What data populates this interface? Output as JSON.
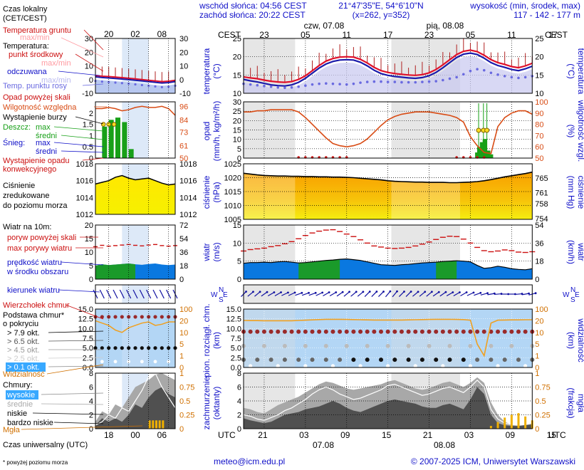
{
  "header": {
    "sunrise": "wschód słońca: 04:56 CEST",
    "sunset": "zachód słońca: 20:22 CEST",
    "coords": "21°47'35\"E, 54°6'10\"N",
    "grid": "(x=262, y=352)",
    "elev_title": "wysokość (min, środek, max)",
    "elev_values": "117 - 142 - 177 m"
  },
  "legend": {
    "local_time": "Czas lokalny",
    "local_time2": "(CET/CEST)",
    "soil_temp": "Temperatura gruntu",
    "maxmin": "max/min",
    "temperatura": "Temperatura:",
    "mid_point": "punkt środkowy",
    "maxmin2": "max/min",
    "feels": "odczuwana",
    "maxmin3": "max/min",
    "dew": "Temp. punktu rosy",
    "precip_above": "Opad powyżej skali",
    "rel_hum": "Wilgotność względna",
    "storm": "Wystąpienie burzy",
    "rain": "Deszcz:",
    "rain_max": "max",
    "rain_mid": "średni",
    "snow": "Śnieg:",
    "snow_max": "max",
    "snow_mid": "średni",
    "precip_occ1": "Wystąpienie opadu",
    "precip_occ2": "konwekcyjnego",
    "pressure1": "Ciśnienie",
    "pressure2": "zredukowane",
    "pressure3": "do poziomu morza",
    "wind10": "Wiatr na 10m:",
    "gust_above": "poryw powyżej skali",
    "gust_max": "max porywy wiatru",
    "wind_speed1": "prędkość wiatru",
    "wind_speed2": "w środku obszaru",
    "wind_dir": "kierunek wiatru",
    "cb_top": "Wierzchołek chmur",
    "cloud_base1": "Podstawa chmur*",
    "cloud_base2": "o pokryciu",
    "okt1": "> 7.9 okt.",
    "okt2": "> 6.5 okt.",
    "okt3": "> 4.5 okt.",
    "okt4": "> 2.5 okt.",
    "okt5": "> 0.1 okt.",
    "visibility": "Widzialność",
    "clouds": "Chmury:",
    "high": "wysokie",
    "mid": "średnie",
    "low": "niskie",
    "very_low": "bardzo niskie",
    "fog": "Mgła",
    "utc_label": "Czas uniwersalny (UTC)",
    "footnote": "* powyżej poziomu morza"
  },
  "axes": {
    "cest": "CEST",
    "utc": "UTC",
    "day1": "czw, 07.08",
    "day2": "pią, 08.08",
    "date1": "07.08",
    "date2": "08.08",
    "temp_label": "temperatura",
    "temp_unit": "(°C)",
    "precip_label": "opad",
    "precip_unit": "(mm/h, kg/m²/h)",
    "hum_label": "wilgotność wzgl.",
    "hum_unit": "(%)",
    "press_label": "ciśnienie",
    "press_unit": "(hPa)",
    "press_unit2": "(mm Hg)",
    "wind_label": "wiatr",
    "wind_unit": "(m/s)",
    "wind_unit2": "(km/h)",
    "cloud_label": "pion. rozciągł. chm.",
    "cloud_unit": "(km)",
    "vis_label": "widzialność",
    "vis_unit": "(km)",
    "cover_label": "zachmurzenie",
    "cover_unit": "(oktanty)",
    "fog_label": "mgła",
    "fog_unit": "(frakcja)",
    "wdir_w": "W",
    "wdir_n": "N",
    "wdir_s": "S",
    "wdir_e": "E"
  },
  "footer": {
    "email": "meteo@icm.edu.pl",
    "copyright": "© 2007-2025 ICM, Uniwersytet Warszawski"
  },
  "colors": {
    "temp": "#e0102a",
    "feels": "#1b1baa",
    "dew": "#6a6ae0",
    "rain": "#18a018",
    "humidity": "#d84b14",
    "pressure_fill": "#f0a800",
    "wind": "#0c6ed8",
    "gust": "#cc1010",
    "cloud_base": "#8b1a1a",
    "visibility": "#f0a020",
    "fog": "#f0b000",
    "panel_bg": "#b3d6f5"
  },
  "chart_data": {
    "type": "line",
    "time_axis": {
      "cest_ticks": [
        "23",
        "05",
        "11",
        "17",
        "23",
        "05",
        "11",
        "17",
        "23",
        "05"
      ],
      "utc_ticks": [
        "21",
        "03",
        "09",
        "15",
        "21",
        "03",
        "09",
        "15",
        "21",
        "03"
      ],
      "legend_cest_ticks": [
        "20",
        "02",
        "08"
      ],
      "legend_utc_ticks": [
        "18",
        "00",
        "06"
      ]
    },
    "temperature": {
      "ylim": [
        10,
        25
      ],
      "yticks": [
        10,
        15,
        20,
        25
      ],
      "mid": [
        14.5,
        14.2,
        14.0,
        13.6,
        13.3,
        13.1,
        13.0,
        13.2,
        13.8,
        14.8,
        16.2,
        17.6,
        18.8,
        19.5,
        19.9,
        20.0,
        19.9,
        19.3,
        18.3,
        17.1,
        16.2,
        15.7,
        15.4,
        15.2,
        15.0,
        14.9,
        15.1,
        15.6,
        16.5,
        17.8,
        19.2,
        20.6,
        21.5,
        21.8,
        21.4,
        20.4,
        19.2,
        18.4,
        17.9,
        17.3,
        17.0,
        17.5,
        18.2
      ],
      "feels": [
        13.8,
        13.4,
        13.1,
        12.7,
        12.3,
        12.1,
        12.0,
        12.3,
        13.0,
        14.1,
        15.5,
        16.9,
        18.0,
        18.7,
        19.1,
        19.2,
        19.1,
        18.5,
        17.5,
        16.3,
        15.4,
        14.9,
        14.6,
        14.4,
        14.2,
        14.1,
        14.3,
        14.8,
        15.7,
        17.0,
        18.4,
        19.8,
        20.7,
        21.0,
        20.6,
        19.6,
        18.4,
        17.6,
        17.1,
        16.5,
        16.2,
        16.7,
        17.4
      ],
      "dew": [
        12.6,
        12.4,
        12.2,
        12.0,
        11.8,
        11.6,
        11.5,
        11.6,
        11.8,
        12.1,
        12.4,
        12.6,
        12.7,
        12.6,
        12.5,
        12.4,
        12.6,
        12.9,
        13.1,
        13.2,
        13.2,
        13.1,
        13.1,
        13.0,
        13.0,
        13.0,
        13.1,
        13.2,
        13.3,
        13.6,
        14.0,
        14.4,
        15.2,
        16.1,
        16.6,
        16.3,
        15.6,
        15.1,
        14.7,
        14.4,
        14.2,
        14.4,
        14.7
      ],
      "soil_maxmin_spread": 2.5
    },
    "precipitation": {
      "ylim": [
        0,
        30
      ],
      "yticks": [
        0,
        5,
        10,
        15,
        20,
        25,
        30
      ],
      "humidity_ylim": [
        50,
        100
      ],
      "humidity_yticks": [
        50,
        60,
        70,
        80,
        90,
        100
      ],
      "humidity": [
        91,
        91,
        92,
        92,
        93,
        93,
        93,
        93,
        91,
        86,
        80,
        74,
        68,
        63,
        61,
        60,
        61,
        63,
        67,
        73,
        79,
        84,
        87,
        89,
        90,
        91,
        91,
        91,
        90,
        89,
        88,
        86,
        82,
        69,
        61,
        55,
        54,
        78,
        86,
        90,
        92,
        92,
        89
      ],
      "rain_bars": [
        {
          "t": 13.2,
          "v": 0.2
        },
        {
          "t": 14.0,
          "v": 3.0
        },
        {
          "t": 14.3,
          "v": 6.0
        },
        {
          "t": 14.7,
          "v": 8.5
        },
        {
          "t": 15.1,
          "v": 10.2
        },
        {
          "t": 15.6,
          "v": 4.0
        },
        {
          "t": 16.0,
          "v": 2.0
        }
      ],
      "rain_max_marks": [
        14.2,
        14.9,
        15.4
      ]
    },
    "pressure": {
      "ylim": [
        1005,
        1025
      ],
      "yticks": [
        1005,
        1010,
        1015,
        1020,
        1025
      ],
      "mmhg_ticks": [
        754,
        758,
        761,
        765
      ],
      "values": [
        1021.6,
        1021.3,
        1021.0,
        1020.8,
        1020.7,
        1020.6,
        1020.6,
        1020.5,
        1020.5,
        1020.4,
        1020.4,
        1020.3,
        1020.3,
        1020.2,
        1020.2,
        1020.1,
        1020.0,
        1019.8,
        1019.6,
        1019.4,
        1019.2,
        1018.9,
        1018.7,
        1018.6,
        1018.5,
        1018.4,
        1018.4,
        1018.3,
        1018.3,
        1018.3,
        1018.2,
        1018.2,
        1018.3,
        1018.4,
        1018.6,
        1018.9,
        1019.3,
        1019.8,
        1020.3,
        1020.7,
        1021.1,
        1021.5,
        1022.0
      ]
    },
    "wind": {
      "ylim": [
        0,
        15
      ],
      "yticks": [
        0,
        5,
        10,
        15
      ],
      "kmh_ticks": [
        0,
        18,
        36,
        54
      ],
      "speed": [
        4.4,
        4.6,
        4.6,
        4.7,
        4.6,
        4.8,
        4.9,
        4.7,
        4.5,
        4.6,
        4.8,
        5.0,
        5.2,
        5.3,
        5.5,
        5.6,
        5.4,
        5.2,
        4.8,
        4.4,
        4.0,
        3.9,
        3.8,
        4.0,
        4.1,
        4.3,
        4.5,
        4.6,
        4.7,
        4.9,
        5.0,
        5.1,
        5.0,
        4.8,
        3.8,
        3.0,
        3.2,
        3.6,
        3.3,
        2.9,
        2.7,
        2.6,
        2.9
      ],
      "gusts": [
        7.8,
        8.2,
        8.4,
        8.6,
        9.0,
        9.3,
        9.8,
        10.4,
        11.2,
        12.1,
        12.8,
        13.3,
        13.6,
        13.7,
        13.2,
        12.5,
        11.8,
        10.9,
        10.0,
        9.2,
        8.9,
        8.6,
        8.5,
        8.6,
        8.8,
        9.2,
        9.7,
        10.3,
        11.0,
        11.6,
        11.9,
        11.8,
        11.1,
        10.0,
        8.8,
        7.9,
        7.6,
        7.8,
        8.1,
        7.9,
        7.5,
        7.4,
        7.6
      ],
      "direction_deg": [
        225,
        230,
        230,
        235,
        240,
        240,
        245,
        245,
        250,
        250,
        250,
        245,
        240,
        240,
        235,
        230,
        230,
        230,
        225,
        225,
        225,
        220,
        220,
        225,
        225,
        230,
        230,
        230,
        235,
        235,
        240,
        240,
        240,
        245,
        250,
        255,
        260,
        265,
        270,
        270,
        265,
        260,
        255
      ]
    },
    "clouds": {
      "ylim": [
        0,
        15
      ],
      "yticks": [
        0,
        2.5,
        5,
        7.5,
        10,
        12.5,
        15
      ],
      "vis_ylim": [
        0,
        100
      ],
      "vis_yticks": [
        0,
        1,
        5,
        10,
        20,
        100
      ],
      "visibility": [
        22,
        21,
        21,
        20,
        20,
        20,
        20,
        20,
        22,
        24,
        26,
        28,
        30,
        30,
        30,
        29,
        28,
        27,
        26,
        25,
        25,
        25,
        25,
        25,
        26,
        27,
        28,
        29,
        30,
        30,
        30,
        29,
        28,
        24,
        5,
        1,
        18,
        24,
        25,
        26,
        26,
        27,
        27
      ],
      "cb_top_km": 9.2
    },
    "cover": {
      "ylim": [
        0,
        8
      ],
      "yticks": [
        0,
        2,
        4,
        6,
        8
      ],
      "fog_ylim": [
        0,
        1
      ],
      "fog_yticks": [
        0,
        0.25,
        0.5,
        0.75,
        1
      ],
      "low": [
        1.5,
        1.2,
        1.0,
        0.8,
        1.0,
        1.5,
        2.0,
        2.2,
        2.4,
        2.8,
        3.0,
        3.2,
        3.6,
        4.0,
        3.6,
        3.0,
        2.6,
        2.4,
        2.8,
        3.2,
        3.6,
        4.0,
        4.2,
        4.0,
        3.8,
        3.6,
        3.2,
        3.0,
        3.0,
        3.4,
        3.6,
        3.2,
        2.8,
        4.2,
        6.0,
        5.0,
        2.0,
        0.8,
        0.5,
        0.4,
        0.4,
        0.5,
        0.6
      ],
      "mid": [
        3.0,
        2.8,
        2.4,
        2.2,
        2.8,
        3.4,
        3.8,
        4.2,
        4.6,
        5.2,
        5.8,
        6.4,
        6.8,
        6.6,
        6.2,
        5.8,
        5.6,
        5.8,
        6.0,
        6.2,
        6.4,
        6.8,
        7.0,
        6.6,
        6.2,
        5.8,
        5.6,
        5.8,
        6.2,
        6.6,
        6.8,
        6.4,
        6.0,
        6.6,
        7.4,
        6.6,
        3.8,
        2.0,
        1.0,
        0.6,
        0.5,
        0.6,
        0.8
      ],
      "total": [
        2.0,
        1.8,
        1.4,
        1.2,
        1.6,
        2.0,
        2.6,
        3.0,
        3.6,
        4.2,
        5.0,
        5.6,
        6.0,
        5.6,
        5.0,
        4.6,
        4.2,
        4.4,
        4.8,
        5.2,
        5.6,
        6.2,
        6.4,
        6.0,
        5.6,
        5.2,
        4.8,
        5.0,
        5.4,
        5.8,
        6.0,
        5.6,
        5.2,
        6.0,
        7.0,
        6.0,
        2.8,
        1.4,
        0.8,
        0.6,
        0.5,
        0.6,
        0.8
      ],
      "fog": [
        0,
        0,
        0,
        0,
        0,
        0,
        0,
        0,
        0,
        0,
        0,
        0,
        0,
        0,
        0,
        0,
        0,
        0,
        0,
        0,
        0,
        0,
        0,
        0,
        0,
        0,
        0,
        0,
        0,
        0,
        0,
        0,
        0,
        0,
        0,
        0,
        0.05,
        0.12,
        0.2,
        0.25,
        0.28,
        0.22,
        0.15
      ]
    }
  }
}
